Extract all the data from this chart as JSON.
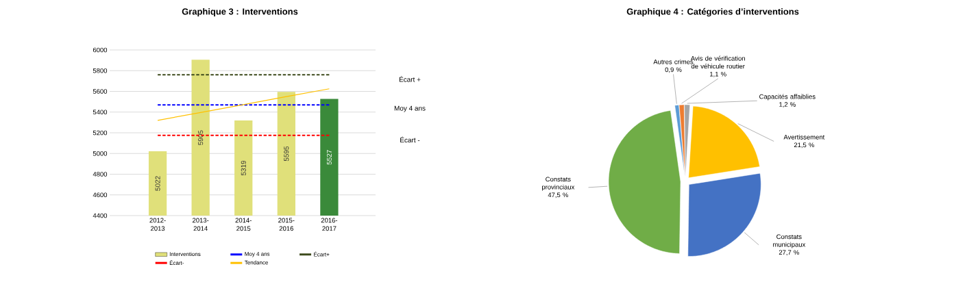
{
  "chart_data": [
    {
      "type": "bar",
      "title": "Graphique 3 : Interventions",
      "categories": [
        "2012-2013",
        "2013-2014",
        "2014-2015",
        "2015-2016",
        "2016-2017"
      ],
      "series": [
        {
          "name": "Interventions",
          "type": "bar",
          "colors": [
            "#e0e07a",
            "#e0e07a",
            "#e0e07a",
            "#e0e07a",
            "#3a8a3a"
          ],
          "values": [
            5022,
            5905,
            5319,
            5595,
            5527
          ],
          "value_labels": [
            "5022",
            "5905",
            "5319",
            "5595",
            "5527"
          ]
        },
        {
          "name": "Moy 4 ans",
          "type": "line",
          "color": "#0000ff",
          "line_style": "dashed",
          "values": [
            5470,
            5470,
            5470,
            5470,
            5470
          ]
        },
        {
          "name": "Écart+",
          "type": "line",
          "color": "#3d4a1c",
          "line_style": "dashed",
          "values": [
            5760,
            5760,
            5760,
            5760,
            5760
          ]
        },
        {
          "name": "Écart-",
          "type": "line",
          "color": "#ff0000",
          "line_style": "dashed",
          "values": [
            5175,
            5175,
            5175,
            5175,
            5175
          ]
        },
        {
          "name": "Tendance",
          "type": "line",
          "color": "#ffc000",
          "line_style": "solid",
          "values": [
            5320,
            5396,
            5472,
            5549,
            5625
          ]
        }
      ],
      "annotations": [
        "Écart +",
        "Moy 4 ans",
        "Écart -"
      ],
      "ylim": [
        4400,
        6000
      ],
      "yticks": [
        4400,
        4600,
        4800,
        5000,
        5200,
        5400,
        5600,
        5800,
        6000
      ],
      "grid": "y",
      "legend": "bottom"
    },
    {
      "type": "pie",
      "title": "Graphique 4 : Catégories d’interventions",
      "categories": [
        "Autres crimes",
        "Avis de vérification de véhicule routier",
        "Capacités affaiblies",
        "Avertissement",
        "Constats municipaux",
        "Constats provinciaux"
      ],
      "values": [
        0.9,
        1.1,
        1.2,
        21.5,
        27.7,
        47.5
      ],
      "value_labels": [
        "0,9 %",
        "1,1 %",
        "1,2 %",
        "21,5 %",
        "27,7 %",
        "47,5 %"
      ],
      "colors": [
        "#5b9bd5",
        "#ed7d31",
        "#a5a5a5",
        "#ffc000",
        "#4472c4",
        "#70ad47"
      ]
    }
  ]
}
